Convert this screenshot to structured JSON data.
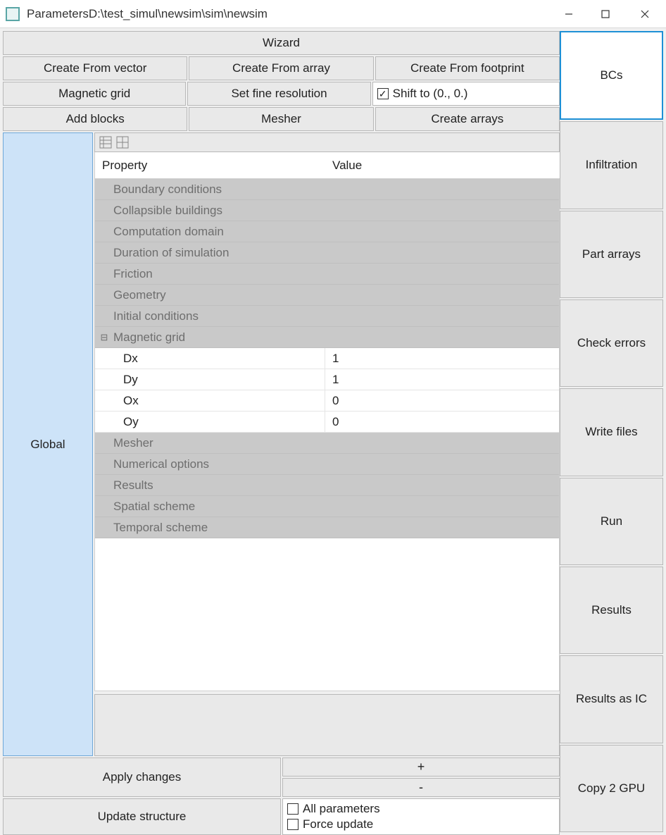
{
  "window": {
    "title": "ParametersD:\\test_simul\\newsim\\sim\\newsim"
  },
  "toolbar": {
    "wizard": "Wizard",
    "create_from_vector": "Create From vector",
    "create_from_array": "Create From array",
    "create_from_footprint": "Create From footprint",
    "magnetic_grid": "Magnetic grid",
    "set_fine_resolution": "Set fine resolution",
    "shift_label": "Shift to (0., 0.)",
    "shift_checked": true,
    "add_blocks": "Add blocks",
    "mesher": "Mesher",
    "create_arrays": "Create arrays"
  },
  "sidebar": {
    "tabs": [
      "Global"
    ],
    "active": "Global"
  },
  "right_panel": {
    "buttons": [
      {
        "label": "BCs",
        "active": true
      },
      {
        "label": "Infiltration",
        "active": false
      },
      {
        "label": "Part arrays",
        "active": false
      },
      {
        "label": "Check errors",
        "active": false
      },
      {
        "label": "Write files",
        "active": false
      },
      {
        "label": "Run",
        "active": false
      },
      {
        "label": "Results",
        "active": false
      },
      {
        "label": "Results as IC",
        "active": false
      },
      {
        "label": "Copy 2 GPU",
        "active": false
      }
    ]
  },
  "property_grid": {
    "header": {
      "property": "Property",
      "value": "Value"
    },
    "categories": [
      {
        "name": "Boundary conditions",
        "expanded": false,
        "items": []
      },
      {
        "name": "Collapsible buildings",
        "expanded": false,
        "items": []
      },
      {
        "name": "Computation domain",
        "expanded": false,
        "items": []
      },
      {
        "name": "Duration of simulation",
        "expanded": false,
        "items": []
      },
      {
        "name": "Friction",
        "expanded": false,
        "items": []
      },
      {
        "name": "Geometry",
        "expanded": false,
        "items": []
      },
      {
        "name": "Initial conditions",
        "expanded": false,
        "items": []
      },
      {
        "name": "Magnetic grid",
        "expanded": true,
        "items": [
          {
            "name": "Dx",
            "value": "1"
          },
          {
            "name": "Dy",
            "value": "1"
          },
          {
            "name": "Ox",
            "value": "0"
          },
          {
            "name": "Oy",
            "value": "0"
          }
        ]
      },
      {
        "name": "Mesher",
        "expanded": false,
        "items": []
      },
      {
        "name": "Numerical options",
        "expanded": false,
        "items": []
      },
      {
        "name": "Results",
        "expanded": false,
        "items": []
      },
      {
        "name": "Spatial scheme",
        "expanded": false,
        "items": []
      },
      {
        "name": "Temporal scheme",
        "expanded": false,
        "items": []
      }
    ]
  },
  "bottom": {
    "apply_changes": "Apply changes",
    "update_structure": "Update structure",
    "plus": "+",
    "minus": "-",
    "all_parameters": "All parameters",
    "force_update": "Force update",
    "all_parameters_checked": false,
    "force_update_checked": false
  },
  "colors": {
    "button_bg": "#e9e9e9",
    "button_border": "#b8b8b8",
    "active_border": "#1e90d6",
    "sidebar_bg": "#cde3f8",
    "sidebar_border": "#6fa8d8",
    "category_bg": "#c9c9c9",
    "category_fg": "#6e6e6e",
    "white": "#ffffff"
  }
}
